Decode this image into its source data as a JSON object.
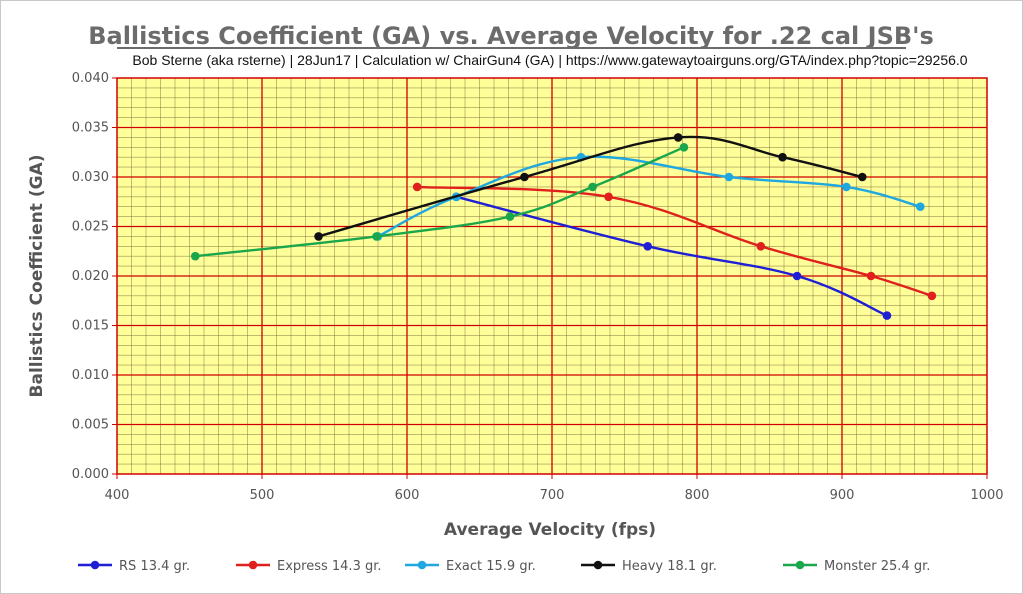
{
  "chart_data": {
    "type": "line",
    "title": "Ballistics Coefficient (GA) vs. Average Velocity for .22 cal JSB's",
    "subtitle": "Bob Sterne (aka rsterne)   |   28Jun17   |   Calculation w/ ChairGun4 (GA)   |   https://www.gatewaytoairguns.org/GTA/index.php?topic=29256.0",
    "xlabel": "Average Velocity (fps)",
    "ylabel": "Ballistics Coefficient (GA)",
    "xlim": [
      400,
      1000
    ],
    "ylim": [
      0,
      0.04
    ],
    "x_ticks": [
      "400",
      "500",
      "600",
      "700",
      "800",
      "900",
      "1000"
    ],
    "y_ticks": [
      "0.000",
      "0.005",
      "0.010",
      "0.015",
      "0.020",
      "0.025",
      "0.030",
      "0.035",
      "0.040"
    ],
    "grid": true,
    "legend_position": "bottom",
    "series": [
      {
        "name": "RS 13.4 gr.",
        "color": "#1f1fd6",
        "x": [
          634,
          766,
          869,
          931
        ],
        "y": [
          0.028,
          0.023,
          0.02,
          0.016
        ]
      },
      {
        "name": "Express 14.3 gr.",
        "color": "#e0201c",
        "x": [
          607,
          739,
          844,
          920,
          962
        ],
        "y": [
          0.029,
          0.028,
          0.023,
          0.02,
          0.018
        ]
      },
      {
        "name": "Exact 15.9 gr.",
        "color": "#1fa8e0",
        "x": [
          580,
          634,
          720,
          822,
          903,
          954
        ],
        "y": [
          0.024,
          0.028,
          0.032,
          0.03,
          0.029,
          0.027
        ]
      },
      {
        "name": "Heavy 18.1 gr.",
        "color": "#111111",
        "x": [
          539,
          681,
          787,
          859,
          914
        ],
        "y": [
          0.024,
          0.03,
          0.034,
          0.032,
          0.03
        ]
      },
      {
        "name": "Monster 25.4 gr.",
        "color": "#1aa64a",
        "x": [
          454,
          579,
          671,
          728,
          791
        ],
        "y": [
          0.022,
          0.024,
          0.026,
          0.029,
          0.033
        ]
      }
    ]
  }
}
